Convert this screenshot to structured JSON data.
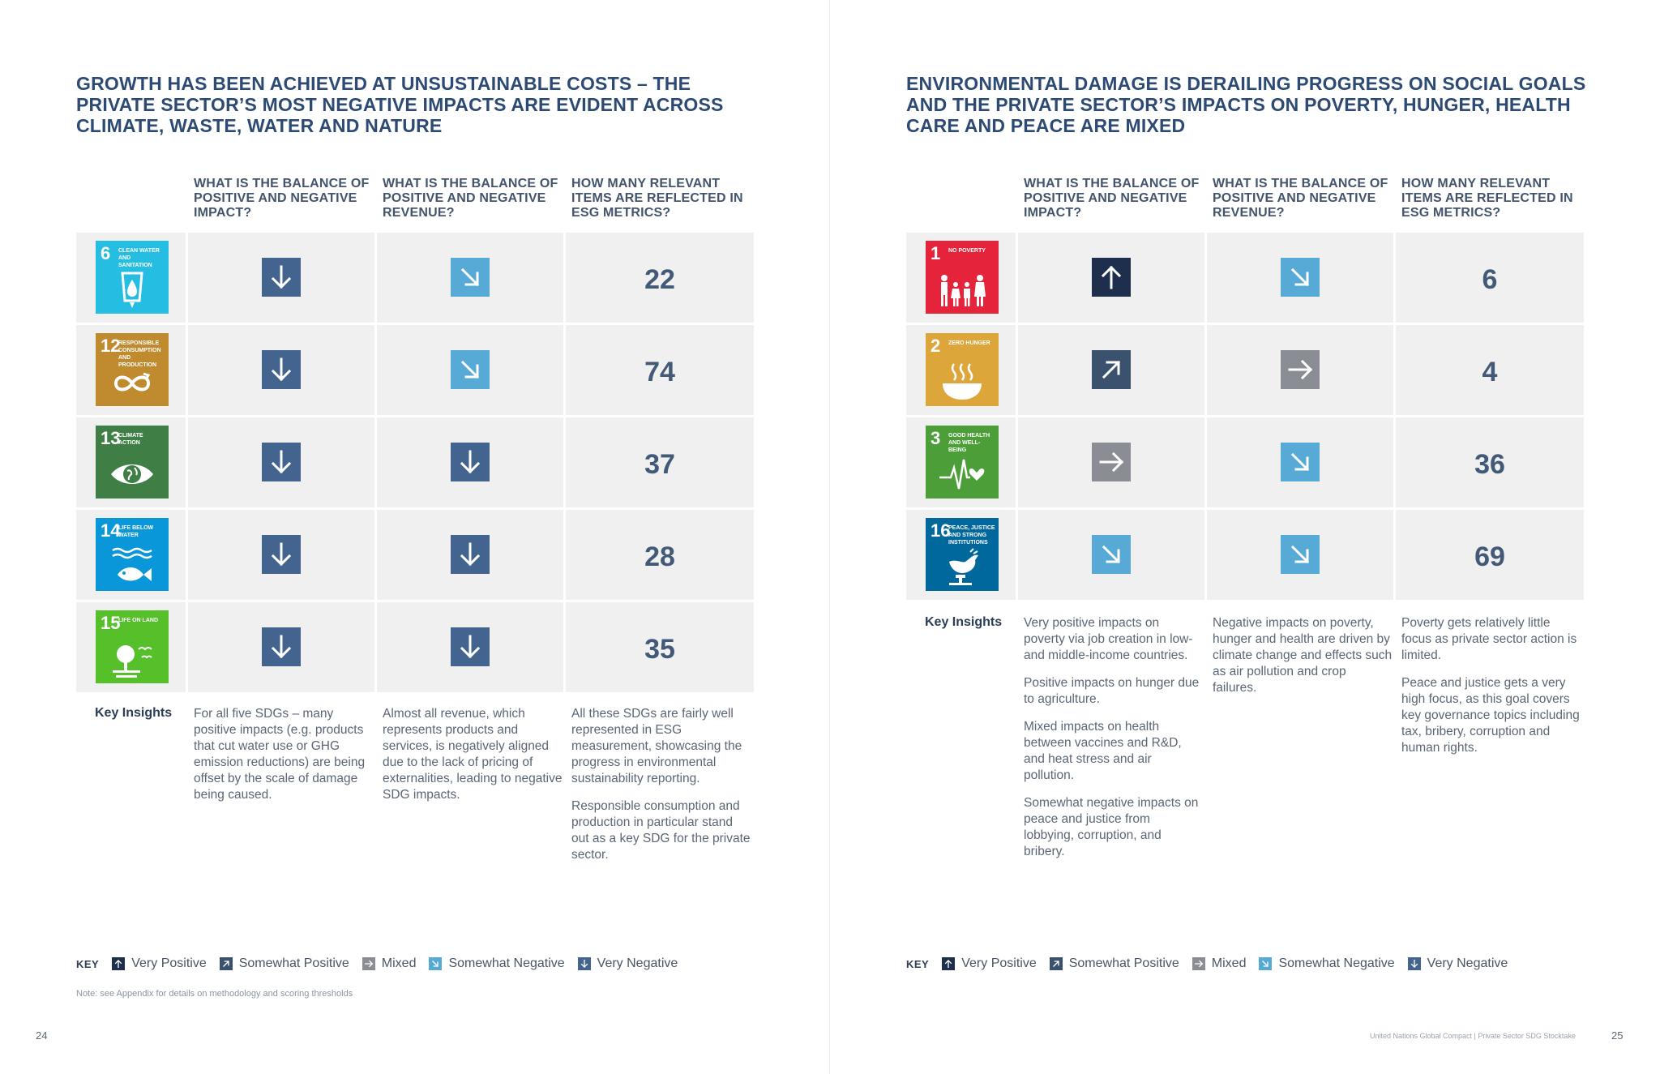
{
  "colors": {
    "very_positive": "#1e2f4d",
    "somewhat_positive": "#3a526d",
    "mixed": "#8a8d93",
    "somewhat_negative": "#57a9d6",
    "very_negative": "#42648e"
  },
  "left": {
    "title": "GROWTH HAS BEEN ACHIEVED AT UNSUSTAINABLE COSTS – THE PRIVATE SECTOR’S MOST NEGATIVE IMPACTS ARE EVIDENT ACROSS CLIMATE, WASTE, WATER AND NATURE",
    "headers": [
      "WHAT IS THE BALANCE OF POSITIVE AND NEGATIVE IMPACT?",
      "WHAT IS THE BALANCE OF POSITIVE AND NEGATIVE REVENUE?",
      "HOW MANY RELEVANT ITEMS ARE REFLECTED IN ESG METRICS?"
    ],
    "rows": [
      {
        "sdg_num": "6",
        "sdg_label": "CLEAN WATER AND SANITATION",
        "sdg_color": "#26bde2",
        "icon": "water-drop-glass-icon",
        "impact": "very_negative",
        "revenue": "somewhat_negative",
        "count": "22"
      },
      {
        "sdg_num": "12",
        "sdg_label": "RESPONSIBLE CONSUMPTION AND PRODUCTION",
        "sdg_color": "#bf8b2e",
        "icon": "infinity-loop-icon",
        "impact": "very_negative",
        "revenue": "somewhat_negative",
        "count": "74"
      },
      {
        "sdg_num": "13",
        "sdg_label": "CLIMATE ACTION",
        "sdg_color": "#3f7e44",
        "icon": "earth-eye-icon",
        "impact": "very_negative",
        "revenue": "very_negative",
        "count": "37"
      },
      {
        "sdg_num": "14",
        "sdg_label": "LIFE BELOW WATER",
        "sdg_color": "#0a97d9",
        "icon": "fish-waves-icon",
        "impact": "very_negative",
        "revenue": "very_negative",
        "count": "28"
      },
      {
        "sdg_num": "15",
        "sdg_label": "LIFE ON LAND",
        "sdg_color": "#56c02b",
        "icon": "tree-birds-icon",
        "impact": "very_negative",
        "revenue": "very_negative",
        "count": "35"
      }
    ],
    "key_insights_label": "Key Insights",
    "insights": [
      [
        "For all five SDGs – many positive impacts (e.g. products that cut water use or GHG emission reductions) are being offset by the scale of damage being caused."
      ],
      [
        "Almost all revenue, which represents products and services, is negatively aligned due to the lack of pricing of externalities, leading to negative SDG impacts."
      ],
      [
        "All these SDGs are fairly well represented in ESG measurement, showcasing the progress in environmental sustainability reporting.",
        "Responsible consumption and production in particular stand out as a key SDG for the private sector."
      ]
    ],
    "note": "Note: see Appendix for details on methodology and scoring thresholds",
    "page_number": "24"
  },
  "right": {
    "title": "ENVIRONMENTAL DAMAGE IS DERAILING PROGRESS ON SOCIAL GOALS AND THE PRIVATE SECTOR’S IMPACTS ON POVERTY, HUNGER, HEALTH CARE AND PEACE ARE MIXED",
    "headers": [
      "WHAT IS THE BALANCE OF POSITIVE AND NEGATIVE IMPACT?",
      "WHAT IS THE BALANCE OF POSITIVE AND NEGATIVE REVENUE?",
      "HOW MANY RELEVANT ITEMS ARE REFLECTED IN ESG METRICS?"
    ],
    "rows": [
      {
        "sdg_num": "1",
        "sdg_label": "NO POVERTY",
        "sdg_color": "#e5243b",
        "icon": "family-people-icon",
        "impact": "very_positive",
        "revenue": "somewhat_negative",
        "count": "6"
      },
      {
        "sdg_num": "2",
        "sdg_label": "ZERO HUNGER",
        "sdg_color": "#dda63a",
        "icon": "food-bowl-icon",
        "impact": "somewhat_positive",
        "revenue": "mixed",
        "count": "4"
      },
      {
        "sdg_num": "3",
        "sdg_label": "GOOD HEALTH AND WELL-BEING",
        "sdg_color": "#4c9f38",
        "icon": "heartbeat-icon",
        "impact": "mixed",
        "revenue": "somewhat_negative",
        "count": "36"
      },
      {
        "sdg_num": "16",
        "sdg_label": "PEACE, JUSTICE AND STRONG INSTITUTIONS",
        "sdg_color": "#00689d",
        "icon": "dove-gavel-icon",
        "impact": "somewhat_negative",
        "revenue": "somewhat_negative",
        "count": "69"
      }
    ],
    "key_insights_label": "Key Insights",
    "insights": [
      [
        "Very positive impacts on poverty via job creation in low- and middle-income countries.",
        "Positive impacts on hunger due to agriculture.",
        "Mixed impacts on health between vaccines and R&D, and heat stress and air pollution.",
        "Somewhat negative impacts on peace and justice from lobbying, corruption, and bribery."
      ],
      [
        "Negative impacts on poverty, hunger and health are driven by climate change and effects such as air pollution and crop failures."
      ],
      [
        "Poverty gets relatively little focus as private sector action is limited.",
        "Peace and justice gets a very high focus, as this goal covers key governance topics including tax, bribery, corruption and human rights."
      ]
    ],
    "footer": "United Nations Global Compact  |  Private Sector SDG Stocktake",
    "page_number": "25"
  },
  "key": {
    "label": "KEY",
    "items": [
      {
        "id": "very_positive",
        "label": "Very Positive"
      },
      {
        "id": "somewhat_positive",
        "label": "Somewhat Positive"
      },
      {
        "id": "mixed",
        "label": "Mixed"
      },
      {
        "id": "somewhat_negative",
        "label": "Somewhat Negative"
      },
      {
        "id": "very_negative",
        "label": "Very Negative"
      }
    ]
  }
}
